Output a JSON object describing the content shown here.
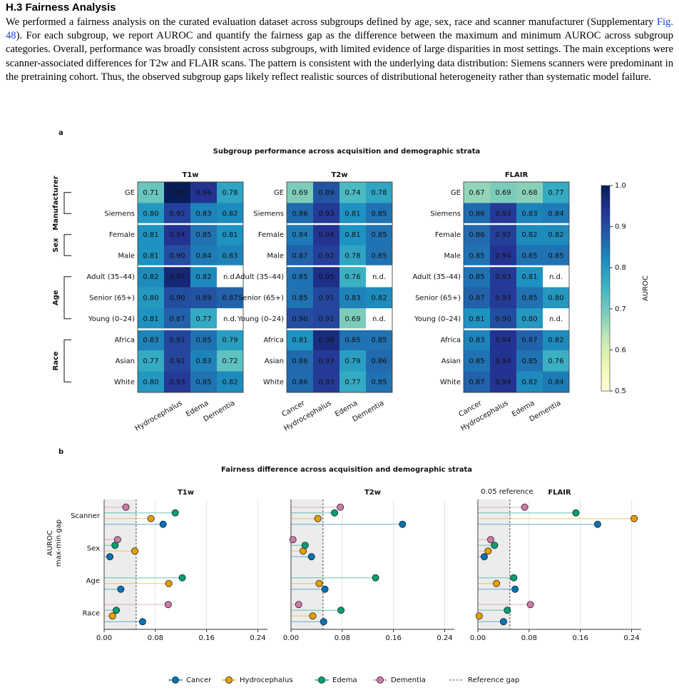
{
  "section": {
    "title": "H.3 Fairness Analysis",
    "paragraph": {
      "before": "We performed a fairness analysis on the curated evaluation dataset across subgroups defined by age, sex, race and scanner manufacturer (Supplementary ",
      "link": "Fig. 48",
      "after": "). For each subgroup, we report AUROC and quantify the fairness gap as the difference between the maximum and minimum AUROC across subgroup categories. Overall, performance was broadly consistent across subgroups, with limited evidence of large disparities in most settings. The main exceptions were scanner-associated differences for T2w and FLAIR scans. The pattern is consistent with the underlying data distribution: Siemens scanners were predominant in the pretraining cohort. Thus, the observed subgroup gaps likely reflect realistic sources of distributional heterogeneity rather than systematic model failure."
    }
  },
  "chart_data": [
    {
      "type": "heatmap",
      "panel_label": "a",
      "title": "Subgroup performance across acquisition and demographic strata",
      "rows": [
        "GE",
        "Siemens",
        "Female",
        "Male",
        "Adult (35–44)",
        "Senior (65+)",
        "Young (0–24)",
        "Africa",
        "Asian",
        "White"
      ],
      "row_groups": [
        "Manufacturer",
        "Manufacturer",
        "Sex",
        "Sex",
        "Age",
        "Age",
        "Age",
        "Race",
        "Race",
        "Race"
      ],
      "colormap": [
        "#ffffd9",
        "#edf8b1",
        "#c7e9b4",
        "#7fcdbb",
        "#41b6c4",
        "#1d91c0",
        "#225ea8",
        "#253494",
        "#081d58"
      ],
      "missing_color": "#ffffff",
      "colorbar": {
        "label": "AUROC",
        "lim": [
          0.5,
          1.0
        ],
        "ticks": [
          0.5,
          0.6,
          0.7,
          0.8,
          0.9,
          {
            "value": 1.0,
            "label": "1.0"
          }
        ]
      },
      "panels": [
        {
          "title": "T1w",
          "columns": [
            null,
            "Hydrocephalus",
            "Edema",
            "Dementia"
          ],
          "values": [
            [
              0.71,
              1.0,
              0.94,
              0.78
            ],
            [
              0.8,
              0.92,
              0.83,
              0.82
            ],
            [
              0.81,
              0.94,
              0.85,
              0.81
            ],
            [
              0.81,
              0.9,
              0.84,
              0.83
            ],
            [
              0.82,
              0.97,
              0.82,
              null
            ],
            [
              0.8,
              0.9,
              0.89,
              0.87
            ],
            [
              0.81,
              0.87,
              0.77,
              null
            ],
            [
              0.83,
              0.91,
              0.85,
              0.79
            ],
            [
              0.77,
              0.91,
              0.83,
              0.72
            ],
            [
              0.8,
              0.93,
              0.85,
              0.82
            ]
          ],
          "value_labels": [
            [
              "0.71",
              "1.00",
              "0.94",
              "0.78"
            ],
            [
              "0.80",
              "0.92",
              "0.83",
              "0.82"
            ],
            [
              "0.81",
              "0.94",
              "0.85",
              "0.81"
            ],
            [
              "0.81",
              "0.90",
              "0.84",
              "0.83"
            ],
            [
              "0.82",
              "0.97",
              "0.82",
              "n.d."
            ],
            [
              "0.80",
              "0.90",
              "0.89",
              "0.87"
            ],
            [
              "0.81",
              "0.87",
              "0.77",
              "n.d."
            ],
            [
              "0.83",
              "0.91",
              "0.85",
              "0.79"
            ],
            [
              "0.77",
              "0.91",
              "0.83",
              "0.72"
            ],
            [
              "0.80",
              "0.93",
              "0.85",
              "0.82"
            ]
          ]
        },
        {
          "title": "T2w",
          "columns": [
            "Cancer",
            "Hydrocephalus",
            "Edema",
            "Dementia"
          ],
          "values": [
            [
              0.69,
              0.89,
              0.74,
              0.78
            ],
            [
              0.86,
              0.93,
              0.81,
              0.85
            ],
            [
              0.84,
              0.94,
              0.81,
              0.85
            ],
            [
              0.87,
              0.92,
              0.78,
              0.85
            ],
            [
              0.85,
              0.95,
              0.76,
              null
            ],
            [
              0.85,
              0.91,
              0.83,
              0.82
            ],
            [
              0.9,
              0.91,
              0.69,
              null
            ],
            [
              0.81,
              0.96,
              0.85,
              0.85
            ],
            [
              0.86,
              0.93,
              0.79,
              0.86
            ],
            [
              0.86,
              0.93,
              0.77,
              0.85
            ]
          ],
          "value_labels": [
            [
              "0.69",
              "0.89",
              "0.74",
              "0.78"
            ],
            [
              "0.86",
              "0.93",
              "0.81",
              "0.85"
            ],
            [
              "0.84",
              "0.94",
              "0.81",
              "0.85"
            ],
            [
              "0.87",
              "0.92",
              "0.78",
              "0.85"
            ],
            [
              "0.85",
              "0.95",
              "0.76",
              "n.d."
            ],
            [
              "0.85",
              "0.91",
              "0.83",
              "0.82"
            ],
            [
              "0.90",
              "0.91",
              "0.69",
              "n.d."
            ],
            [
              "0.81",
              "0.96",
              "0.85",
              "0.85"
            ],
            [
              "0.86",
              "0.93",
              "0.79",
              "0.86"
            ],
            [
              "0.86",
              "0.93",
              "0.77",
              "0.85"
            ]
          ]
        },
        {
          "title": "FLAIR",
          "columns": [
            "Cancer",
            "Hydrocephalus",
            "Edema",
            "Dementia"
          ],
          "values": [
            [
              0.67,
              0.69,
              0.68,
              0.77
            ],
            [
              0.86,
              0.93,
              0.83,
              0.84
            ],
            [
              0.86,
              0.92,
              0.82,
              0.82
            ],
            [
              0.85,
              0.94,
              0.85,
              0.85
            ],
            [
              0.85,
              0.93,
              0.81,
              null
            ],
            [
              0.87,
              0.93,
              0.85,
              0.8
            ],
            [
              0.81,
              0.9,
              0.8,
              null
            ],
            [
              0.83,
              0.94,
              0.87,
              0.82
            ],
            [
              0.85,
              0.94,
              0.85,
              0.76
            ],
            [
              0.87,
              0.94,
              0.82,
              0.84
            ]
          ],
          "value_labels": [
            [
              "0.67",
              "0.69",
              "0.68",
              "0.77"
            ],
            [
              "0.86",
              "0.93",
              "0.83",
              "0.84"
            ],
            [
              "0.86",
              "0.92",
              "0.82",
              "0.82"
            ],
            [
              "0.85",
              "0.94",
              "0.85",
              "0.85"
            ],
            [
              "0.85",
              "0.93",
              "0.81",
              "n.d."
            ],
            [
              "0.87",
              "0.93",
              "0.85",
              "0.80"
            ],
            [
              "0.81",
              "0.90",
              "0.80",
              "n.d."
            ],
            [
              "0.83",
              "0.94",
              "0.87",
              "0.82"
            ],
            [
              "0.85",
              "0.94",
              "0.85",
              "0.76"
            ],
            [
              "0.87",
              "0.94",
              "0.82",
              "0.84"
            ]
          ]
        }
      ]
    },
    {
      "type": "lollipop",
      "panel_label": "b",
      "title": "Fairness difference across acquisition and demographic strata",
      "ylabel": [
        "AUROC",
        "max-min gap"
      ],
      "categories": [
        "Scanner",
        "Sex",
        "Age",
        "Race"
      ],
      "xlim": [
        0,
        0.255
      ],
      "xticks": [
        {
          "value": 0,
          "label": "0.00"
        },
        {
          "value": 0.08,
          "label": "0.08"
        },
        {
          "value": 0.16,
          "label": "0.16"
        },
        {
          "value": 0.24,
          "label": "0.24"
        }
      ],
      "grid": true,
      "reference": {
        "value": 0.05,
        "name": "Reference gap"
      },
      "panels": [
        {
          "title": "T1w",
          "series": [
            {
              "name": "Cancer",
              "color": "#0072b2",
              "values": [
                0.092,
                0.009,
                0.026,
                0.06
              ]
            },
            {
              "name": "Hydrocephalus",
              "color": "#e69f00",
              "values": [
                0.073,
                0.048,
                0.101,
                0.013
              ]
            },
            {
              "name": "Edema",
              "color": "#009e73",
              "values": [
                0.111,
                0.017,
                0.122,
                0.019
              ]
            },
            {
              "name": "Dementia",
              "color": "#cc79a7",
              "values": [
                0.034,
                0.021,
                null,
                0.1
              ]
            }
          ]
        },
        {
          "title": "T2w",
          "series": [
            {
              "name": "Cancer",
              "color": "#0072b2",
              "values": [
                0.174,
                0.032,
                0.053,
                0.051
              ]
            },
            {
              "name": "Hydrocephalus",
              "color": "#e69f00",
              "values": [
                0.042,
                0.019,
                0.044,
                0.034
              ]
            },
            {
              "name": "Edema",
              "color": "#009e73",
              "values": [
                0.068,
                0.022,
                0.132,
                0.078
              ]
            },
            {
              "name": "Dementia",
              "color": "#cc79a7",
              "values": [
                0.077,
                0.003,
                null,
                0.012
              ]
            }
          ]
        },
        {
          "title": "FLAIR",
          "annotation": "0.05 reference",
          "series": [
            {
              "name": "Cancer",
              "color": "#0072b2",
              "values": [
                0.187,
                0.01,
                0.058,
                0.04
              ]
            },
            {
              "name": "Hydrocephalus",
              "color": "#e69f00",
              "values": [
                0.244,
                0.016,
                0.029,
                0.002
              ]
            },
            {
              "name": "Edema",
              "color": "#009e73",
              "values": [
                0.153,
                0.026,
                0.056,
                0.046
              ]
            },
            {
              "name": "Dementia",
              "color": "#cc79a7",
              "values": [
                0.073,
                0.02,
                null,
                0.082
              ]
            }
          ]
        }
      ]
    }
  ]
}
